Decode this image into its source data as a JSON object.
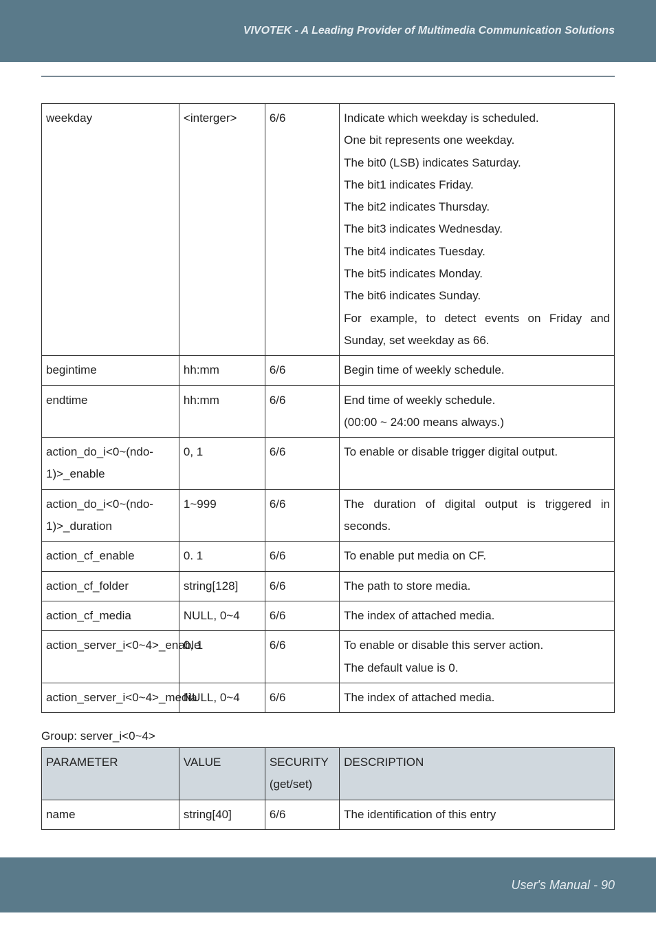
{
  "header": {
    "title": "VIVOTEK - A Leading Provider of Multimedia Communication Solutions"
  },
  "table1": {
    "col_widths_pct": [
      24,
      15,
      13,
      48
    ],
    "border_color": "#333333",
    "font_size_pt": 17,
    "line_height": 1.9,
    "rows": [
      {
        "param": "weekday",
        "value": "<interger>",
        "security": "6/6",
        "desc_lines": [
          "Indicate which weekday is scheduled.",
          "One bit represents one weekday.",
          "The bit0 (LSB) indicates Saturday.",
          "The bit1 indicates Friday.",
          "The bit2 indicates Thursday.",
          "The bit3 indicates Wednesday.",
          "The bit4 indicates Tuesday.",
          "The bit5 indicates Monday.",
          "The bit6 indicates Sunday.",
          "For example, to detect events on Friday and Sunday, set weekday as 66."
        ],
        "desc_justify_indices": [
          9
        ]
      },
      {
        "param": "begintime",
        "value": "hh:mm",
        "security": "6/6",
        "desc_lines": [
          "Begin time of weekly schedule."
        ]
      },
      {
        "param": "endtime",
        "value": "hh:mm",
        "security": "6/6",
        "desc_lines": [
          "End time of weekly schedule.",
          "(00:00 ~ 24:00 means always.)"
        ]
      },
      {
        "param": "action_do_i<0~(ndo-1)>_enable",
        "value": "0, 1",
        "security": "6/6",
        "desc_lines": [
          "To enable or disable trigger digital output."
        ],
        "desc_justify_indices": [
          0
        ]
      },
      {
        "param": "action_do_i<0~(ndo-1)>_duration",
        "value": "1~999",
        "security": "6/6",
        "desc_lines": [
          "The duration of digital output is triggered in seconds."
        ],
        "desc_justify_indices": [
          0
        ]
      },
      {
        "param": "action_cf_enable",
        "value": "0. 1",
        "security": "6/6",
        "desc_lines": [
          "To enable put media on CF."
        ]
      },
      {
        "param": "action_cf_folder",
        "value": "string[128]",
        "security": "6/6",
        "desc_lines": [
          "The path to store media."
        ]
      },
      {
        "param": "action_cf_media",
        "value": "NULL, 0~4",
        "security": "6/6",
        "desc_lines": [
          "The index of attached media."
        ]
      },
      {
        "param": "action_server_i<0~4>_enable",
        "value": "0, 1",
        "security": "6/6",
        "desc_lines": [
          "To enable or disable this server action.",
          "The default value is 0."
        ]
      },
      {
        "param": "action_server_i<0~4>_media",
        "value": "NULL, 0~4",
        "security": "6/6",
        "desc_lines": [
          "The index of attached media."
        ]
      }
    ]
  },
  "group_label": "Group: server_i<0~4>",
  "table2": {
    "col_widths_pct": [
      24,
      15,
      13,
      48
    ],
    "header_bg": "#d0d8de",
    "headers": {
      "param": "PARAMETER",
      "value": "VALUE",
      "security_line1": "SECURITY",
      "security_line2": "(get/set)",
      "desc": "DESCRIPTION"
    },
    "rows": [
      {
        "param": "name",
        "value": "string[40]",
        "security": "6/6",
        "desc": "The identification of this entry"
      }
    ]
  },
  "footer": {
    "text": "User's Manual - 90"
  },
  "colors": {
    "band_bg": "#5a7a8a",
    "band_text": "#e8eef2",
    "rule": "#7a8a95",
    "header_row_bg": "#d0d8de",
    "body_text": "#222222",
    "border": "#333333",
    "page_bg": "#ffffff"
  }
}
